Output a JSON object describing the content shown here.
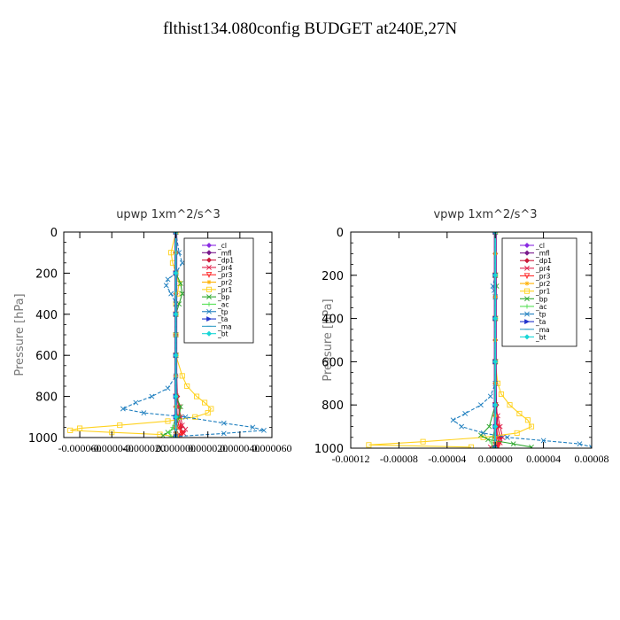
{
  "figure_title": "flthist134.080config  BUDGET at240E,27N",
  "chart_data": [
    {
      "type": "line",
      "title": "upwp   1xm^2/s^3",
      "ylabel": "Pressure  [hPa]",
      "xlabel": "",
      "ylim": [
        1000,
        0
      ],
      "xlim": [
        -7e-05,
        6e-05
      ],
      "y_ticks": [
        0,
        200,
        400,
        600,
        800,
        1000
      ],
      "x_ticks": [
        -6e-05,
        -4e-05,
        -2e-05,
        0.0,
        2e-05,
        4e-05,
        6e-05
      ],
      "x_tick_labels": [
        "-0.000060",
        "-0.000040",
        "-0.000020",
        "0.000000",
        "0.000020",
        "0.000040",
        "0.000060"
      ],
      "grid": false,
      "legend_position": "top-right",
      "series": [
        {
          "name": "_cl",
          "color": "#8a2be2",
          "marker": "diamond",
          "y": [
            0,
            100,
            200,
            300,
            400,
            500,
            600,
            700,
            800,
            850,
            900,
            950,
            975,
            1000
          ],
          "x": [
            0,
            0,
            0,
            0,
            0,
            0,
            0,
            0,
            0,
            0,
            0,
            0,
            0,
            0
          ]
        },
        {
          "name": "_mfl",
          "color": "#7a1a8c",
          "marker": "diamond",
          "y": [
            0,
            100,
            200,
            300,
            400,
            500,
            600,
            700,
            800,
            850,
            900,
            950,
            975,
            1000
          ],
          "x": [
            0,
            0,
            0,
            0,
            0,
            0,
            0,
            0,
            0,
            0,
            0,
            0,
            0,
            0
          ]
        },
        {
          "name": "_dp1",
          "color": "#cc1a3a",
          "marker": "diamond",
          "y": [
            0,
            200,
            400,
            600,
            800,
            850,
            900,
            950,
            975,
            990
          ],
          "x": [
            0,
            0,
            0,
            0,
            1e-06,
            2e-06,
            2e-06,
            3e-06,
            4e-06,
            2e-06
          ]
        },
        {
          "name": "_pr4",
          "color": "#e0204a",
          "marker": "x",
          "y": [
            0,
            200,
            400,
            600,
            800,
            850,
            900,
            940,
            960,
            980,
            995
          ],
          "x": [
            0,
            0,
            0,
            0,
            0,
            2e-06,
            3e-06,
            4e-06,
            6e-06,
            5e-06,
            2e-06
          ]
        },
        {
          "name": "_pr3",
          "color": "#ff2a2a",
          "marker": "triangle",
          "y": [
            0,
            200,
            400,
            600,
            800,
            900,
            950,
            980,
            995
          ],
          "x": [
            0,
            0,
            0,
            0,
            0,
            1e-06,
            2e-06,
            4e-06,
            3e-06
          ]
        },
        {
          "name": "_pr2",
          "color": "#ffb000",
          "marker": "star",
          "y": [
            0,
            100,
            200,
            300,
            400,
            500,
            600,
            700,
            800,
            850,
            900,
            950,
            975
          ],
          "x": [
            0,
            0,
            0,
            0,
            0,
            0,
            0,
            0,
            0,
            0,
            0,
            0,
            0
          ]
        },
        {
          "name": "_pr1",
          "color": "#ffd21f",
          "marker": "square",
          "y": [
            0,
            100,
            150,
            200,
            250,
            300,
            350,
            400,
            500,
            600,
            700,
            750,
            800,
            830,
            860,
            880,
            900,
            920,
            940,
            955,
            965,
            975,
            985,
            995
          ],
          "x": [
            0,
            -3e-06,
            -2e-06,
            0,
            2e-06,
            1e-06,
            0,
            0,
            0,
            0,
            4e-06,
            7e-06,
            1.3e-05,
            1.8e-05,
            2.2e-05,
            2e-05,
            1.2e-05,
            -5e-06,
            -3.5e-05,
            -6e-05,
            -6.6e-05,
            -4e-05,
            -1e-05,
            0
          ]
        },
        {
          "name": "_bp",
          "color": "#2ea82e",
          "marker": "x",
          "y": [
            0,
            200,
            250,
            300,
            350,
            400,
            600,
            800,
            850,
            900,
            950,
            975,
            990
          ],
          "x": [
            0,
            0,
            3e-06,
            4e-06,
            2e-06,
            0,
            0,
            0,
            3e-06,
            2e-06,
            0,
            -5e-06,
            -8e-06
          ]
        },
        {
          "name": "_ac",
          "color": "#55e055",
          "marker": "plus",
          "y": [
            0,
            400,
            800,
            900,
            950,
            975,
            995
          ],
          "x": [
            0,
            0,
            0,
            0,
            -2e-06,
            -4e-06,
            -3e-06
          ]
        },
        {
          "name": "_tp",
          "color": "#1f7fbf",
          "marker": "x",
          "y": [
            0,
            100,
            150,
            200,
            230,
            260,
            300,
            350,
            400,
            500,
            600,
            700,
            760,
            800,
            830,
            860,
            880,
            900,
            930,
            950,
            965,
            980,
            995
          ],
          "x": [
            0,
            2e-06,
            4e-06,
            0,
            -5e-06,
            -6e-06,
            -3e-06,
            0,
            0,
            0,
            0,
            0,
            -5e-06,
            -1.5e-05,
            -2.5e-05,
            -3.3e-05,
            -2e-05,
            6e-06,
            3e-05,
            4.8e-05,
            5.5e-05,
            3e-05,
            0
          ]
        },
        {
          "name": "_ta",
          "color": "#2233cc",
          "marker": "arrow",
          "y": [
            0,
            200,
            400,
            600,
            800,
            900,
            1000
          ],
          "x": [
            0,
            0,
            0,
            0,
            0,
            0,
            0
          ]
        },
        {
          "name": "_ma",
          "color": "#3aa0c8",
          "marker": "dash",
          "y": [
            0,
            200,
            400,
            600,
            800,
            900,
            1000
          ],
          "x": [
            0,
            0,
            0,
            0,
            0,
            0,
            0
          ]
        },
        {
          "name": "_bt",
          "color": "#18d6d6",
          "marker": "diamond",
          "y": [
            0,
            200,
            400,
            600,
            800,
            900,
            1000
          ],
          "x": [
            0,
            0,
            0,
            0,
            0,
            0,
            0
          ]
        }
      ]
    },
    {
      "type": "line",
      "title": "vpwp   1xm^2/s^3",
      "ylabel": "Pressure  [hPa]",
      "xlabel": "",
      "ylim": [
        1000,
        0
      ],
      "xlim": [
        -0.00012,
        8e-05
      ],
      "y_ticks": [
        0,
        200,
        400,
        600,
        800,
        1000
      ],
      "x_ticks": [
        -0.00012,
        -8e-05,
        -4e-05,
        0.0,
        4e-05,
        8e-05
      ],
      "x_tick_labels": [
        "-0.00012",
        "-0.00008",
        "-0.00004",
        "0.00000",
        "0.00004",
        "0.00008"
      ],
      "grid": false,
      "legend_position": "top-right",
      "series": [
        {
          "name": "_cl",
          "color": "#8a2be2",
          "marker": "diamond",
          "y": [
            0,
            100,
            200,
            300,
            400,
            500,
            600,
            700,
            800,
            850,
            900,
            950,
            975,
            1000
          ],
          "x": [
            0,
            0,
            0,
            0,
            0,
            0,
            0,
            0,
            0,
            0,
            0,
            0,
            0,
            0
          ]
        },
        {
          "name": "_mfl",
          "color": "#7a1a8c",
          "marker": "diamond",
          "y": [
            0,
            100,
            200,
            300,
            400,
            500,
            600,
            700,
            800,
            850,
            900,
            950,
            975,
            1000
          ],
          "x": [
            0,
            0,
            0,
            0,
            0,
            0,
            0,
            0,
            0,
            0,
            0,
            0,
            0,
            0
          ]
        },
        {
          "name": "_dp1",
          "color": "#cc1a3a",
          "marker": "diamond",
          "y": [
            0,
            200,
            400,
            600,
            800,
            900,
            950,
            975,
            995
          ],
          "x": [
            0,
            0,
            0,
            0,
            1e-06,
            2e-06,
            4e-06,
            3e-06,
            1e-06
          ]
        },
        {
          "name": "_pr4",
          "color": "#e0204a",
          "marker": "x",
          "y": [
            0,
            200,
            400,
            600,
            800,
            850,
            900,
            950,
            975,
            995
          ],
          "x": [
            0,
            0,
            0,
            0,
            0,
            2e-06,
            4e-06,
            6e-06,
            4e-06,
            -4e-06
          ]
        },
        {
          "name": "_pr3",
          "color": "#ff2a2a",
          "marker": "triangle",
          "y": [
            0,
            200,
            400,
            600,
            800,
            900,
            950,
            980,
            995
          ],
          "x": [
            0,
            0,
            0,
            0,
            0,
            1e-06,
            2e-06,
            3e-06,
            2e-06
          ]
        },
        {
          "name": "_pr2",
          "color": "#ffb000",
          "marker": "star",
          "y": [
            0,
            100,
            200,
            300,
            400,
            500,
            600,
            700,
            800,
            850,
            900,
            950,
            975
          ],
          "x": [
            0,
            0,
            0,
            0,
            0,
            0,
            0,
            0,
            0,
            0,
            0,
            0,
            0
          ]
        },
        {
          "name": "_pr1",
          "color": "#ffd21f",
          "marker": "square",
          "y": [
            0,
            200,
            400,
            600,
            700,
            750,
            800,
            840,
            870,
            900,
            930,
            950,
            970,
            985,
            995
          ],
          "x": [
            0,
            0,
            0,
            0,
            2e-06,
            5e-06,
            1.2e-05,
            2e-05,
            2.7e-05,
            3e-05,
            1.8e-05,
            -1e-05,
            -6e-05,
            -0.000105,
            -2e-05
          ]
        },
        {
          "name": "_bp",
          "color": "#2ea82e",
          "marker": "x",
          "y": [
            0,
            200,
            250,
            300,
            400,
            600,
            800,
            900,
            940,
            960,
            980,
            995
          ],
          "x": [
            0,
            0,
            1e-06,
            0,
            0,
            0,
            0,
            -5e-06,
            -1.2e-05,
            -6e-06,
            1.5e-05,
            3e-05
          ]
        },
        {
          "name": "_ac",
          "color": "#55e055",
          "marker": "plus",
          "y": [
            0,
            400,
            800,
            900,
            950,
            975,
            995
          ],
          "x": [
            0,
            0,
            0,
            0,
            -2e-06,
            -3e-06,
            -2e-06
          ]
        },
        {
          "name": "_tp",
          "color": "#1f7fbf",
          "marker": "x",
          "y": [
            0,
            200,
            250,
            270,
            300,
            400,
            600,
            700,
            760,
            800,
            840,
            870,
            900,
            930,
            950,
            965,
            980,
            995
          ],
          "x": [
            0,
            0,
            -2e-06,
            -1e-06,
            0,
            0,
            0,
            0,
            -4e-06,
            -1.2e-05,
            -2.5e-05,
            -3.5e-05,
            -2.8e-05,
            -1e-05,
            1e-05,
            4e-05,
            7e-05,
            8e-05
          ]
        },
        {
          "name": "_ta",
          "color": "#2233cc",
          "marker": "arrow",
          "y": [
            0,
            200,
            400,
            600,
            800,
            900,
            1000
          ],
          "x": [
            0,
            0,
            0,
            0,
            0,
            0,
            0
          ]
        },
        {
          "name": "_ma",
          "color": "#3aa0c8",
          "marker": "dash",
          "y": [
            0,
            200,
            400,
            600,
            800,
            900,
            1000
          ],
          "x": [
            0,
            0,
            0,
            0,
            0,
            0,
            0
          ]
        },
        {
          "name": "_bt",
          "color": "#18d6d6",
          "marker": "diamond",
          "y": [
            0,
            200,
            400,
            600,
            800,
            900,
            1000
          ],
          "x": [
            0,
            0,
            0,
            0,
            0,
            0,
            0
          ]
        }
      ]
    }
  ]
}
